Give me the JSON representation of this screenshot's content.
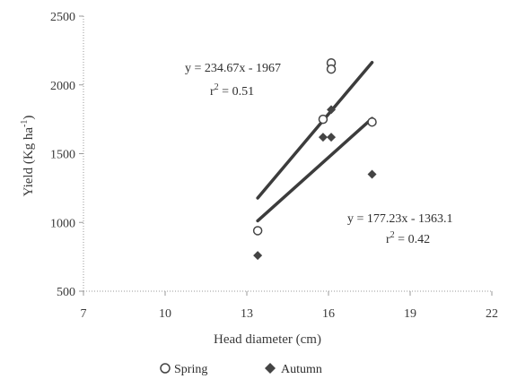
{
  "chart_data": {
    "type": "scatter",
    "xlabel": "Head diameter (cm)",
    "ylabel": "Yield (Kg ha",
    "ylabel_sup": "-1",
    "ylabel_close": ")",
    "xlim": [
      7,
      22
    ],
    "ylim": [
      500,
      2500
    ],
    "x_ticks": [
      7,
      10,
      13,
      16,
      19,
      22
    ],
    "y_ticks": [
      500,
      1000,
      1500,
      2000,
      2500
    ],
    "x_tick_labels": [
      "7",
      "10",
      "13",
      "16",
      "19",
      "22"
    ],
    "y_tick_labels": [
      "500",
      "1000",
      "1500",
      "2000",
      "2500"
    ],
    "legend_position": "bottom",
    "series": [
      {
        "name": "Spring",
        "marker": "open-circle",
        "points": [
          {
            "x": 13.4,
            "y": 940
          },
          {
            "x": 15.8,
            "y": 1750
          },
          {
            "x": 16.1,
            "y": 2160
          },
          {
            "x": 16.1,
            "y": 2115
          },
          {
            "x": 17.6,
            "y": 1730
          }
        ],
        "trendline": {
          "equation": "y = 234.67x - 1967",
          "r2_prefix": "r",
          "r2_sup": "2",
          "r2_value": " = 0.51",
          "slope": 234.67,
          "intercept": -1967,
          "x_range": [
            13.4,
            17.6
          ]
        }
      },
      {
        "name": "Autumn",
        "marker": "filled-diamond",
        "points": [
          {
            "x": 13.4,
            "y": 760
          },
          {
            "x": 15.8,
            "y": 1620
          },
          {
            "x": 16.1,
            "y": 1620
          },
          {
            "x": 16.1,
            "y": 1820
          },
          {
            "x": 17.6,
            "y": 1350
          }
        ],
        "trendline": {
          "equation": "y = 177.23x - 1363.1",
          "r2_prefix": "r",
          "r2_sup": "2",
          "r2_value": " = 0.42",
          "slope": 177.23,
          "intercept": -1363.1,
          "x_range": [
            13.4,
            17.6
          ]
        }
      }
    ],
    "colors": {
      "axis": "#9a9a9a",
      "text": "#333333",
      "trendline": "#3c3c3c",
      "marker": "#444444"
    }
  }
}
